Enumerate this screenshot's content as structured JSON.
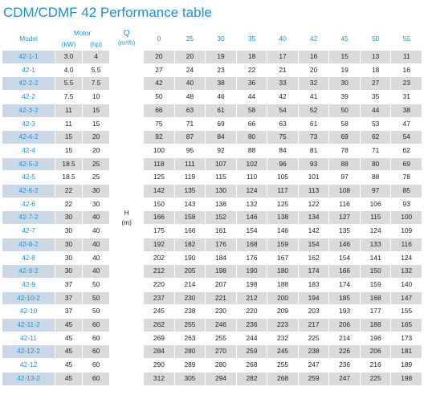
{
  "title": "CDM/CDMF 42 Performance table",
  "header": {
    "model": "Model",
    "motor": "Motor",
    "kw": "(kW)",
    "hp": "(hp)",
    "q_label": "Q",
    "q_unit": "(m³/h)",
    "h_label": "H",
    "h_unit": "(m)",
    "flows": [
      "0",
      "25",
      "30",
      "35",
      "40",
      "42",
      "45",
      "50",
      "55"
    ]
  },
  "rows": [
    {
      "model": "42-1-1",
      "kw": "3.0",
      "hp": "4",
      "h": [
        "20",
        "20",
        "19",
        "18",
        "17",
        "16",
        "15",
        "13",
        "11"
      ]
    },
    {
      "model": "42-1",
      "kw": "4.0",
      "hp": "5.5",
      "h": [
        "27",
        "24",
        "23",
        "22",
        "21",
        "20",
        "19",
        "18",
        "16"
      ]
    },
    {
      "model": "42-2-2",
      "kw": "5.5",
      "hp": "7.5",
      "h": [
        "42",
        "40",
        "38",
        "36",
        "33",
        "32",
        "30",
        "27",
        "23"
      ]
    },
    {
      "model": "42-2",
      "kw": "7.5",
      "hp": "10",
      "h": [
        "50",
        "48",
        "46",
        "44",
        "42",
        "41",
        "39",
        "35",
        "31"
      ]
    },
    {
      "model": "42-3-2",
      "kw": "11",
      "hp": "15",
      "h": [
        "66",
        "63",
        "61",
        "58",
        "54",
        "52",
        "50",
        "44",
        "38"
      ]
    },
    {
      "model": "42-3",
      "kw": "11",
      "hp": "15",
      "h": [
        "75",
        "71",
        "69",
        "66",
        "63",
        "61",
        "58",
        "53",
        "47"
      ]
    },
    {
      "model": "42-4-2",
      "kw": "15",
      "hp": "20",
      "h": [
        "92",
        "87",
        "84",
        "80",
        "75",
        "73",
        "69",
        "62",
        "54"
      ]
    },
    {
      "model": "42-4",
      "kw": "15",
      "hp": "20",
      "h": [
        "100",
        "95",
        "92",
        "88",
        "84",
        "81",
        "78",
        "71",
        "62"
      ]
    },
    {
      "model": "42-5-2",
      "kw": "18.5",
      "hp": "25",
      "h": [
        "118",
        "111",
        "107",
        "102",
        "96",
        "93",
        "88",
        "80",
        "69"
      ]
    },
    {
      "model": "42-5",
      "kw": "18.5",
      "hp": "25",
      "h": [
        "125",
        "119",
        "115",
        "110",
        "105",
        "101",
        "97",
        "88",
        "78"
      ]
    },
    {
      "model": "42-6-2",
      "kw": "22",
      "hp": "30",
      "h": [
        "142",
        "135",
        "130",
        "124",
        "117",
        "113",
        "108",
        "97",
        "85"
      ]
    },
    {
      "model": "42-6",
      "kw": "22",
      "hp": "30",
      "h": [
        "150",
        "143",
        "138",
        "132",
        "125",
        "122",
        "116",
        "106",
        "93"
      ]
    },
    {
      "model": "42-7-2",
      "kw": "30",
      "hp": "40",
      "h": [
        "166",
        "158",
        "152",
        "146",
        "138",
        "134",
        "127",
        "115",
        "100"
      ]
    },
    {
      "model": "42-7",
      "kw": "30",
      "hp": "40",
      "h": [
        "175",
        "166",
        "161",
        "154",
        "146",
        "142",
        "135",
        "124",
        "109"
      ]
    },
    {
      "model": "42-8-2",
      "kw": "30",
      "hp": "40",
      "h": [
        "192",
        "182",
        "176",
        "168",
        "159",
        "154",
        "146",
        "133",
        "116"
      ]
    },
    {
      "model": "42-8",
      "kw": "30",
      "hp": "40",
      "h": [
        "202",
        "190",
        "184",
        "176",
        "167",
        "162",
        "154",
        "141",
        "124"
      ]
    },
    {
      "model": "42-9-2",
      "kw": "30",
      "hp": "40",
      "h": [
        "212",
        "205",
        "198",
        "190",
        "180",
        "174",
        "166",
        "150",
        "132"
      ]
    },
    {
      "model": "42-9",
      "kw": "37",
      "hp": "50",
      "h": [
        "220",
        "214",
        "207",
        "198",
        "188",
        "183",
        "174",
        "159",
        "140"
      ]
    },
    {
      "model": "42-10-2",
      "kw": "37",
      "hp": "50",
      "h": [
        "237",
        "230",
        "221",
        "212",
        "200",
        "194",
        "185",
        "168",
        "147"
      ]
    },
    {
      "model": "42-10",
      "kw": "37",
      "hp": "50",
      "h": [
        "245",
        "238",
        "230",
        "220",
        "209",
        "203",
        "193",
        "177",
        "155"
      ]
    },
    {
      "model": "42-11-2",
      "kw": "45",
      "hp": "60",
      "h": [
        "262",
        "255",
        "246",
        "236",
        "223",
        "217",
        "206",
        "188",
        "165"
      ]
    },
    {
      "model": "42-11",
      "kw": "45",
      "hp": "60",
      "h": [
        "269",
        "263",
        "255",
        "244",
        "232",
        "225",
        "214",
        "196",
        "173"
      ]
    },
    {
      "model": "42-12-2",
      "kw": "45",
      "hp": "60",
      "h": [
        "284",
        "280",
        "270",
        "259",
        "245",
        "238",
        "226",
        "206",
        "181"
      ]
    },
    {
      "model": "42-12",
      "kw": "45",
      "hp": "60",
      "h": [
        "290",
        "289",
        "280",
        "268",
        "255",
        "247",
        "236",
        "216",
        "189"
      ]
    },
    {
      "model": "42-13-2",
      "kw": "45",
      "hp": "60",
      "h": [
        "312",
        "305",
        "294",
        "282",
        "268",
        "259",
        "247",
        "225",
        "198"
      ]
    }
  ]
}
